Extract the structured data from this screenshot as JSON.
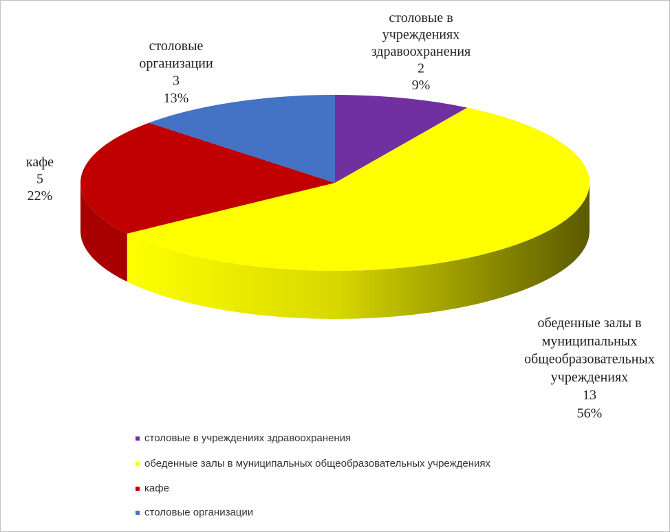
{
  "chart_data": {
    "type": "pie",
    "categories": [
      "столовые в учреждениях здравоохранения",
      "обеденные залы в муниципальных общеобразовательных учреждениях",
      "кафе",
      "столовые организации"
    ],
    "values": [
      2,
      13,
      5,
      3
    ],
    "percent_labels": [
      "9%",
      "56%",
      "22%",
      "13%"
    ],
    "label_lines": [
      [
        "столовые в",
        "учреждениях",
        "здравоохранения"
      ],
      [
        "обеденные залы в",
        "муниципальных",
        "общеобразовательных",
        "учреждениях"
      ],
      [
        "кафе"
      ],
      [
        "столовые",
        "организации"
      ]
    ],
    "colors": [
      "#7030a0",
      "#ffff00",
      "#c00000",
      "#4472c4"
    ],
    "legend": "bottom"
  }
}
